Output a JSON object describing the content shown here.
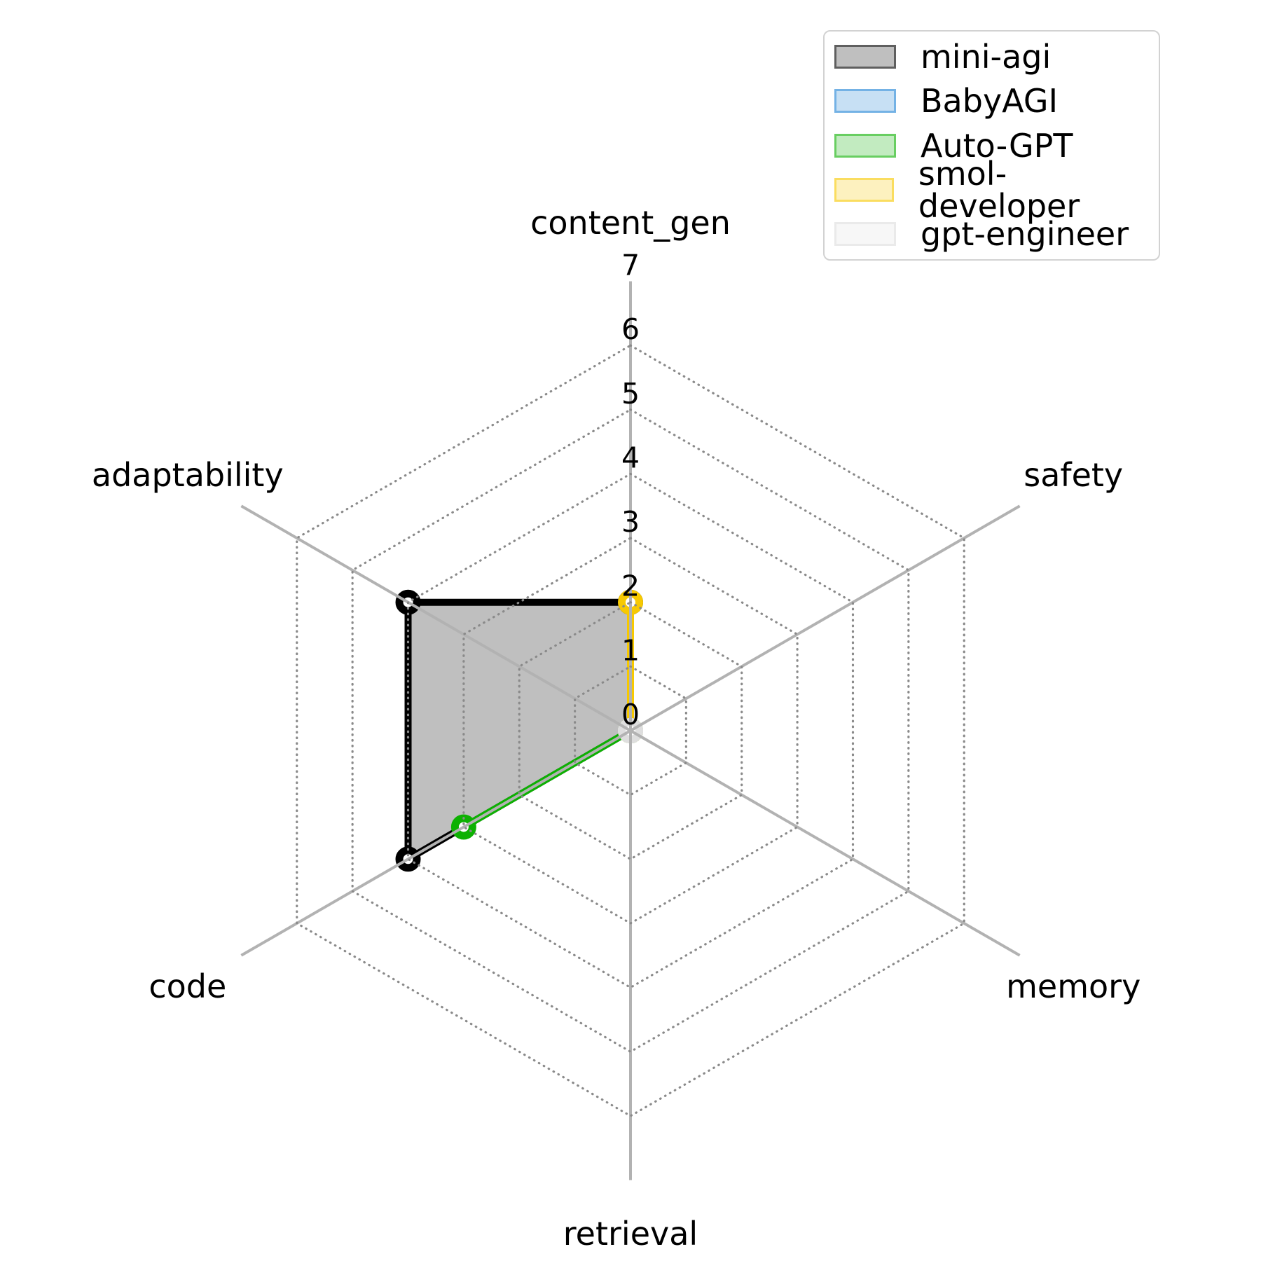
{
  "figure": {
    "background": "#ffffff"
  },
  "chart_data": {
    "type": "radar",
    "title": "",
    "categories": [
      "content_gen",
      "safety",
      "memory",
      "retrieval",
      "code",
      "adaptability"
    ],
    "r_axis": {
      "min": 0,
      "max": 7,
      "ticks": [
        0,
        1,
        2,
        3,
        4,
        5,
        6,
        7
      ],
      "tick_axis": "content_gen"
    },
    "grid": {
      "show": true,
      "rings": [
        1,
        2,
        3,
        4,
        5,
        6
      ],
      "ring_style": "dotted",
      "ring_color": "#8a8a8a",
      "spoke_color": "#b2b2b2",
      "grid_above_data": true
    },
    "legend": {
      "position": "upper right",
      "entries": [
        "mini-agi",
        "BabyAGI",
        "Auto-GPT",
        "smol-developer",
        "gpt-engineer"
      ]
    },
    "fill_alpha": 0.25,
    "marker": "ring-circle",
    "series": [
      {
        "name": "mini-agi",
        "color": "#000000",
        "values": {
          "content_gen": 2,
          "safety": 0,
          "memory": 0,
          "retrieval": 0,
          "code": 4,
          "adaptability": 4
        }
      },
      {
        "name": "BabyAGI",
        "color": "#2183d5",
        "values": {
          "content_gen": 0,
          "safety": 0,
          "memory": 0,
          "retrieval": 0,
          "code": 0,
          "adaptability": 0
        }
      },
      {
        "name": "Auto-GPT",
        "color": "#0db102",
        "values": {
          "content_gen": 0,
          "safety": 0,
          "memory": 0,
          "retrieval": 0,
          "code": 3,
          "adaptability": 0
        }
      },
      {
        "name": "smol-developer",
        "color": "#f7c901",
        "values": {
          "content_gen": 2,
          "safety": 0,
          "memory": 0,
          "retrieval": 0,
          "code": 0,
          "adaptability": 0
        }
      },
      {
        "name": "gpt-engineer",
        "color": "#dedede",
        "values": {
          "content_gen": 0,
          "safety": 0,
          "memory": 0,
          "retrieval": 0,
          "code": 0,
          "adaptability": 0
        }
      }
    ]
  }
}
